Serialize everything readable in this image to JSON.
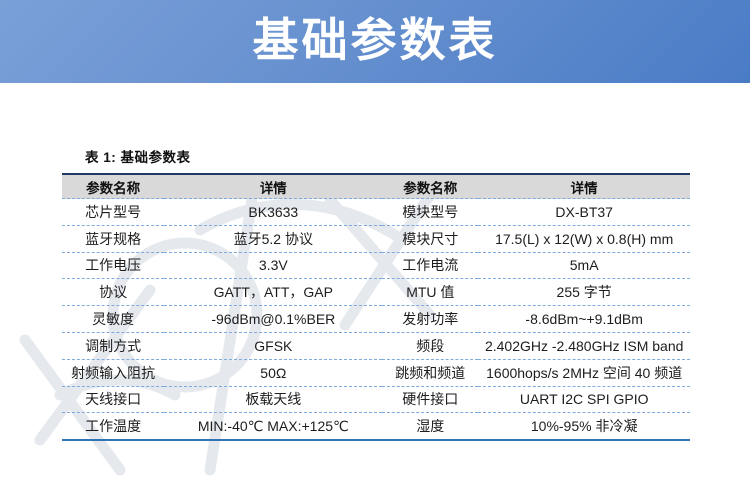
{
  "banner": {
    "title": "基础参数表",
    "gradient_top": "#7ba0d8",
    "gradient_bottom": "#4a7cc6"
  },
  "table": {
    "caption": "表 1: 基础参数表",
    "columns": [
      "参数名称",
      "详情",
      "参数名称",
      "详情"
    ],
    "rows": [
      [
        "芯片型号",
        "BK3633",
        "模块型号",
        "DX-BT37"
      ],
      [
        "蓝牙规格",
        "蓝牙5.2 协议",
        "模块尺寸",
        "17.5(L) x 12(W) x 0.8(H) mm"
      ],
      [
        "工作电压",
        "3.3V",
        "工作电流",
        "5mA"
      ],
      [
        "协议",
        "GATT，ATT，GAP",
        "MTU 值",
        "255 字节"
      ],
      [
        "灵敏度",
        "-96dBm@0.1%BER",
        "发射功率",
        "-8.6dBm~+9.1dBm"
      ],
      [
        "调制方式",
        "GFSK",
        "频段",
        "2.402GHz -2.480GHz ISM band"
      ],
      [
        "射频输入阻抗",
        "50Ω",
        "跳频和频道",
        "1600hops/s 2MHz 空间 40 频道"
      ],
      [
        "天线接口",
        "板载天线",
        "硬件接口",
        "UART I2C SPI GPIO"
      ],
      [
        "工作温度",
        "MIN:-40℃  MAX:+125℃",
        "湿度",
        "10%-95% 非冷凝"
      ]
    ],
    "colors": {
      "header_bg": "#d9d9d9",
      "top_border": "#1f3864",
      "bottom_border": "#2e74b5",
      "row_divider": "#7faadc",
      "text": "#1f1f1f"
    }
  },
  "watermark": {
    "color": "#d0d7df"
  }
}
